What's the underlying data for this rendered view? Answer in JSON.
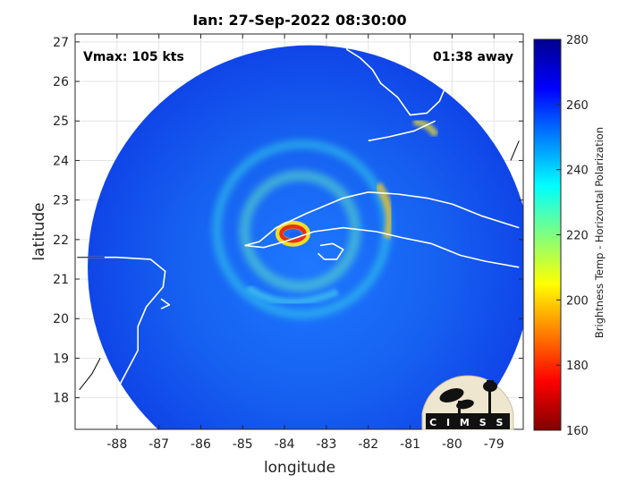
{
  "chart_data": {
    "type": "heatmap",
    "title": "Ian: 27-Sep-2022 08:30:00",
    "annotations": {
      "vmax": "Vmax: 105 kts",
      "time_away": "01:38 away"
    },
    "xlabel": "longitude",
    "ylabel": "latitude",
    "xlim": [
      -89.0,
      -78.3
    ],
    "ylim": [
      17.2,
      27.2
    ],
    "x_ticks": [
      -88,
      -87,
      -86,
      -85,
      -84,
      -83,
      -82,
      -81,
      -80,
      -79
    ],
    "y_ticks": [
      18,
      19,
      20,
      21,
      22,
      23,
      24,
      25,
      26,
      27
    ],
    "grid": true,
    "colorbar": {
      "label": "Brightness Temp - Horizontal Polarization",
      "range": [
        160,
        280
      ],
      "ticks": [
        160,
        180,
        200,
        220,
        240,
        260,
        280
      ],
      "colormap": "jet"
    },
    "swath": {
      "center": [
        -83.4,
        21.3
      ],
      "radius_deg": 5.3
    },
    "storm_center": [
      -83.8,
      22.15
    ],
    "logo": {
      "text": "CIMSS"
    }
  }
}
